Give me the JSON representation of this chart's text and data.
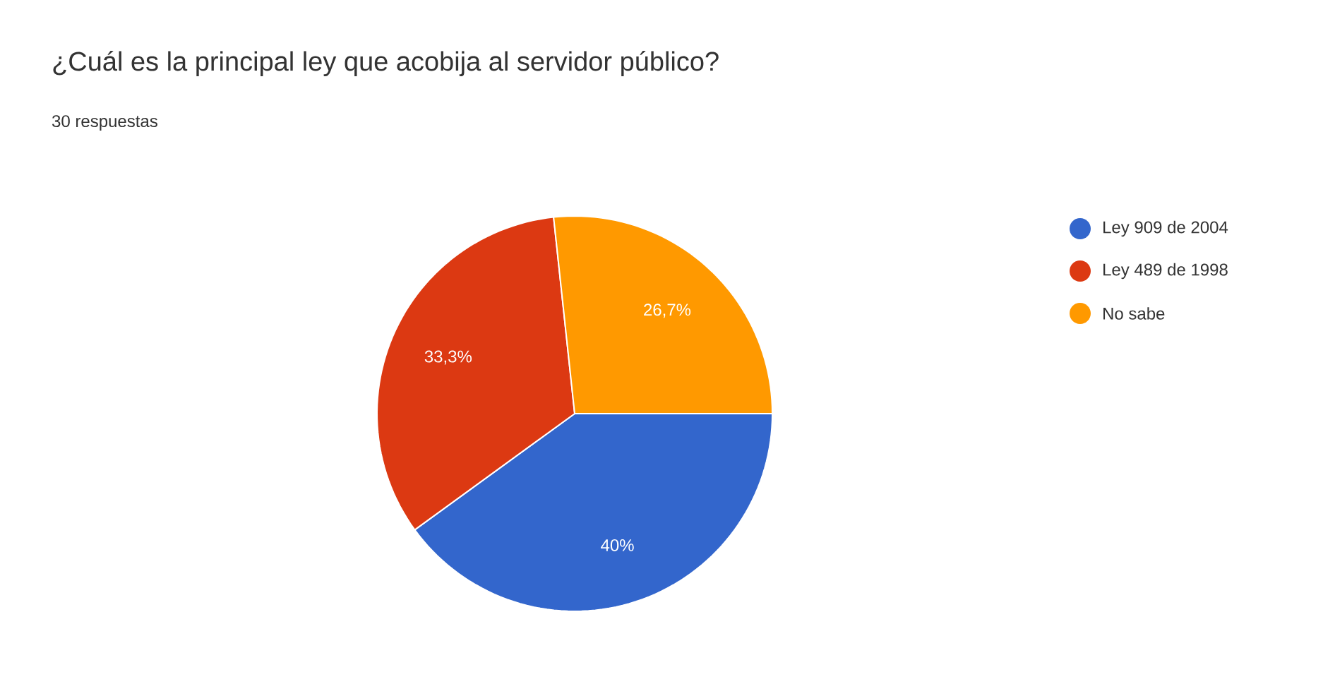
{
  "chart_data": {
    "type": "pie",
    "title": "¿Cuál es la principal ley que acobija al servidor público?",
    "subtitle": "30 respuestas",
    "categories": [
      "Ley 909 de 2004",
      "Ley 489 de 1998",
      "No sabe"
    ],
    "values": [
      40,
      33.3,
      26.7
    ],
    "colors": [
      "#3366cc",
      "#dc3912",
      "#ff9900"
    ],
    "value_labels": [
      "40%",
      "33,3%",
      "26,7%"
    ],
    "legend": "right"
  }
}
